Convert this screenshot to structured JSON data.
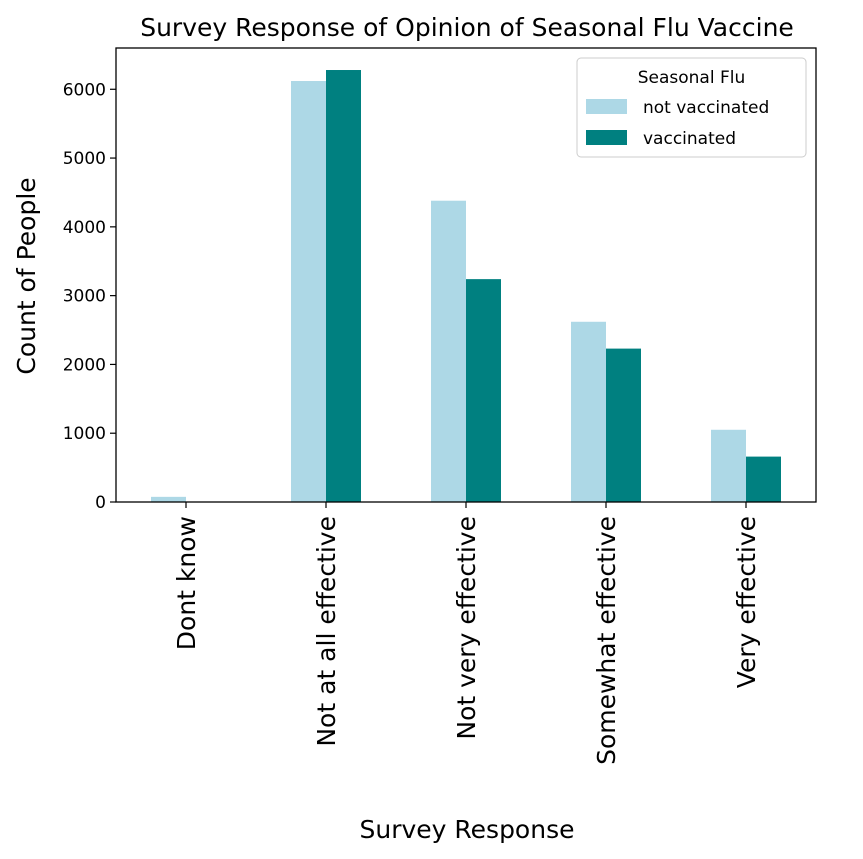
{
  "chart_data": {
    "type": "bar",
    "title": "Survey Response of Opinion of Seasonal Flu Vaccine",
    "xlabel": "Survey Response",
    "ylabel": "Count of People",
    "categories": [
      "Dont know",
      "Not at all effective",
      "Not very effective",
      "Somewhat effective",
      "Very effective"
    ],
    "series": [
      {
        "name": "not vaccinated",
        "color": "#add8e6",
        "values": [
          75,
          6120,
          4380,
          2620,
          1050
        ]
      },
      {
        "name": "vaccinated",
        "color": "#008080",
        "values": [
          0,
          6280,
          3240,
          2230,
          660
        ]
      }
    ],
    "ylim": [
      0,
      6600
    ],
    "yticks": [
      0,
      1000,
      2000,
      3000,
      4000,
      5000,
      6000
    ],
    "legend": {
      "title": "Seasonal Flu",
      "placement": "top-right"
    },
    "grid": false
  }
}
